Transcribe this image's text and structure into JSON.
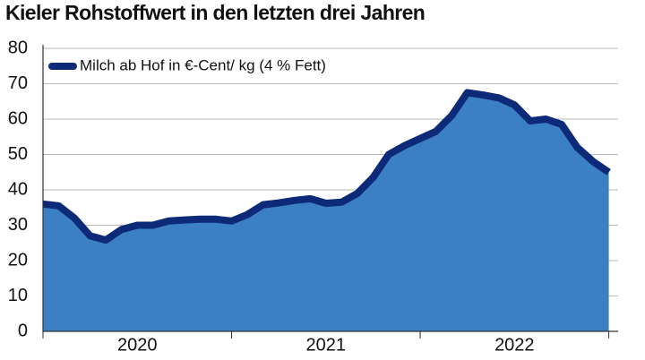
{
  "chart_data": {
    "type": "area",
    "title": "Kieler Rohstoffwert in den letzten drei Jahren",
    "x": [
      2020,
      2020.083,
      2020.167,
      2020.25,
      2020.333,
      2020.417,
      2020.5,
      2020.583,
      2020.667,
      2020.75,
      2020.833,
      2020.917,
      2021,
      2021.083,
      2021.167,
      2021.25,
      2021.333,
      2021.417,
      2021.5,
      2021.583,
      2021.667,
      2021.75,
      2021.833,
      2021.917,
      2022,
      2022.083,
      2022.167,
      2022.25,
      2022.333,
      2022.417,
      2022.5,
      2022.583,
      2022.667,
      2022.75,
      2022.833,
      2022.917,
      2023
    ],
    "series": [
      {
        "name": "Milch ab Hof in €-Cent/ kg (4 % Fett)",
        "color": "#0c2a78",
        "fill": "#3b80c3",
        "values": [
          36,
          35.5,
          32,
          27,
          25.8,
          28.8,
          30,
          30,
          31.2,
          31.5,
          31.7,
          31.7,
          31.2,
          33,
          35.8,
          36.3,
          37,
          37.5,
          36.2,
          36.5,
          39,
          43.5,
          50,
          52.5,
          54.5,
          56.5,
          61,
          67.5,
          66.8,
          66,
          64,
          59.5,
          60,
          58.5,
          52,
          48,
          45
        ]
      }
    ],
    "xlim": [
      2020,
      2023.04
    ],
    "xticks": [
      {
        "value": 2020.5,
        "label": "2020"
      },
      {
        "value": 2021.5,
        "label": "2021"
      },
      {
        "value": 2022.5,
        "label": "2022"
      }
    ],
    "ylim": [
      0,
      80
    ],
    "yticks": [
      0,
      10,
      20,
      30,
      40,
      50,
      60,
      70,
      80
    ],
    "grid": true,
    "legend": "top-left"
  }
}
